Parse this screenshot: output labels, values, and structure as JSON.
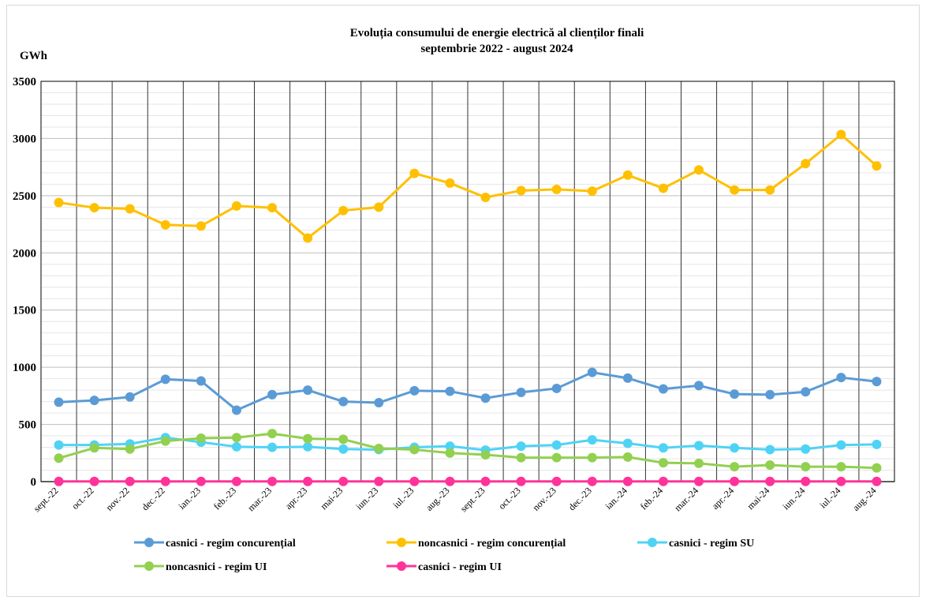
{
  "chart_data": {
    "type": "line",
    "title": "Evoluția consumului de energie electrică al clienților finali",
    "subtitle": "septembrie 2022 - august 2024",
    "ylabel": "GWh",
    "ylim": [
      0,
      3500
    ],
    "yticks": [
      0,
      500,
      1000,
      1500,
      2000,
      2500,
      3000,
      3500
    ],
    "grid": true,
    "legend_position": "bottom",
    "categories": [
      "sept.-22",
      "oct.-22",
      "nov.-22",
      "dec.-22",
      "ian.-23",
      "feb.-23",
      "mar.-23",
      "apr.-23",
      "mai-23",
      "iun.-23",
      "iul.-23",
      "aug.-23",
      "sept.-23",
      "oct.-23",
      "nov.-23",
      "dec.-23",
      "ian.-24",
      "feb.-24",
      "mar.-24",
      "apr.-24",
      "mai-24",
      "iun.-24",
      "iul.-24",
      "aug.-24"
    ],
    "series": [
      {
        "name": "casnici - regim concurențial",
        "color": "#5b9bd5",
        "values": [
          695,
          710,
          740,
          895,
          880,
          625,
          760,
          800,
          700,
          690,
          795,
          790,
          730,
          780,
          815,
          955,
          905,
          810,
          840,
          765,
          760,
          785,
          910,
          875
        ]
      },
      {
        "name": "noncasnici - regim concurențial",
        "color": "#ffc000",
        "values": [
          2440,
          2395,
          2385,
          2245,
          2235,
          2410,
          2395,
          2130,
          2370,
          2400,
          2695,
          2610,
          2485,
          2545,
          2555,
          2540,
          2680,
          2565,
          2725,
          2550,
          2550,
          2780,
          3035,
          2760
        ]
      },
      {
        "name": "casnici - regim SU",
        "color": "#4fd3f5",
        "values": [
          320,
          320,
          330,
          385,
          345,
          305,
          300,
          305,
          285,
          280,
          300,
          310,
          275,
          310,
          320,
          365,
          335,
          295,
          315,
          295,
          280,
          285,
          320,
          325
        ]
      },
      {
        "name": "noncasnici - regim UI",
        "color": "#92d050",
        "values": [
          205,
          295,
          285,
          355,
          380,
          385,
          420,
          375,
          370,
          290,
          280,
          250,
          235,
          210,
          210,
          210,
          215,
          165,
          160,
          130,
          145,
          130,
          130,
          120
        ]
      },
      {
        "name": "casnici - regim UI",
        "color": "#ff3399",
        "values": [
          2,
          2,
          2,
          2,
          2,
          2,
          2,
          2,
          2,
          2,
          2,
          2,
          2,
          2,
          2,
          2,
          2,
          2,
          2,
          2,
          2,
          2,
          2,
          2
        ]
      }
    ]
  }
}
